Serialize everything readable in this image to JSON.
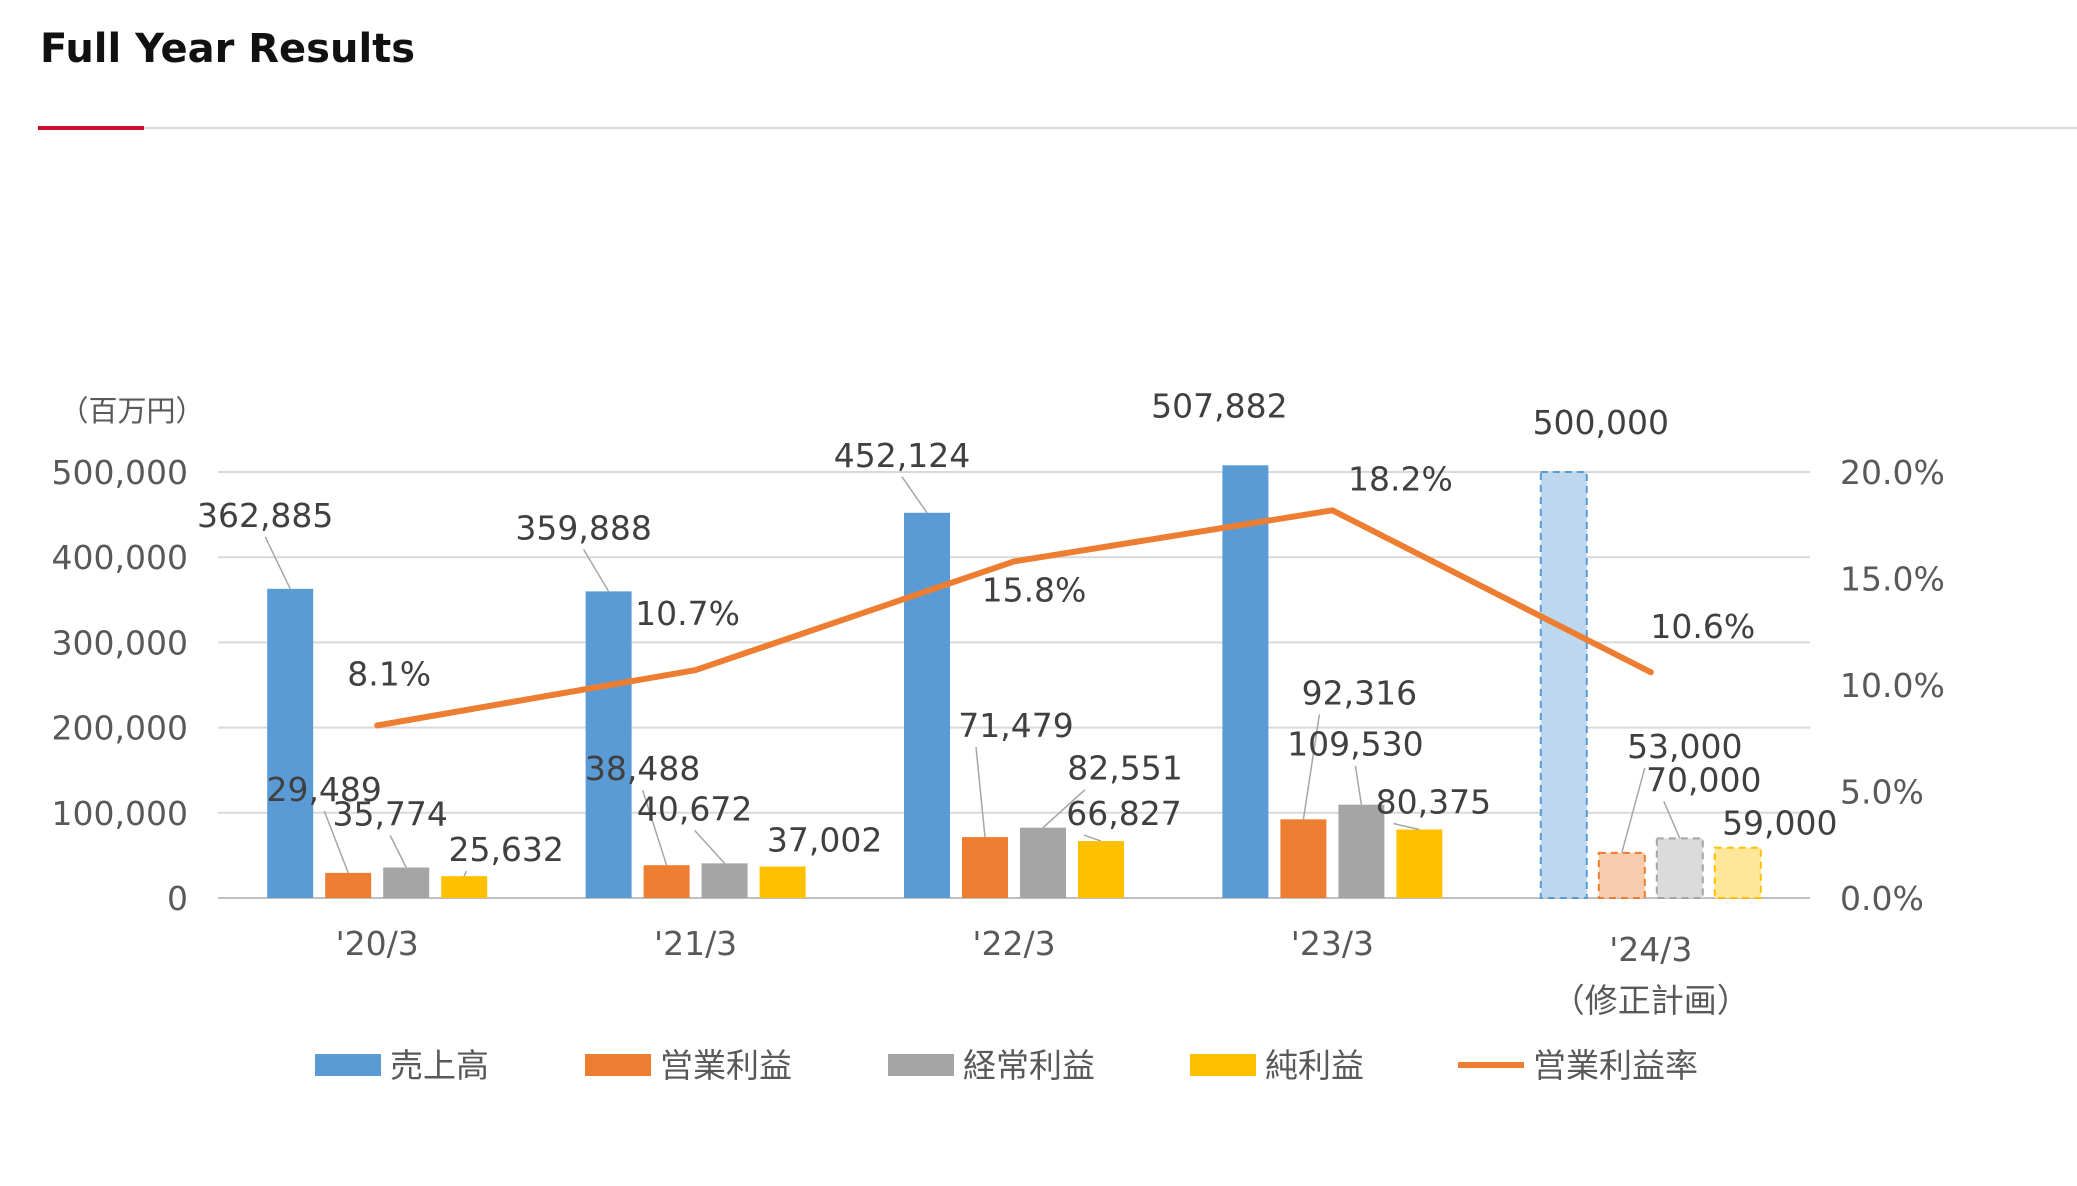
{
  "page": {
    "title": "Full Year Results"
  },
  "chart_data": {
    "type": "bar",
    "unit_label": "（百万円）",
    "categories": [
      "'20/3",
      "'21/3",
      "'22/3",
      "'23/3",
      "'24/3"
    ],
    "category_sublabels": [
      "",
      "",
      "",
      "",
      "（修正計画）"
    ],
    "forecast_index": 4,
    "y_left": {
      "min": 0,
      "max": 500000,
      "ticks": [
        0,
        100000,
        200000,
        300000,
        400000,
        500000
      ],
      "tick_labels": [
        "0",
        "100,000",
        "200,000",
        "300,000",
        "400,000",
        "500,000"
      ]
    },
    "y_right": {
      "min": 0,
      "max": 20,
      "ticks": [
        0,
        5,
        10,
        15,
        20
      ],
      "tick_labels": [
        "0.0%",
        "5.0%",
        "10.0%",
        "15.0%",
        "20.0%"
      ]
    },
    "series": [
      {
        "name": "売上高",
        "type": "bar",
        "axis": "left",
        "color": "#5b9bd5",
        "forecast_color": "#bdd7ee",
        "values": [
          362885,
          359888,
          452124,
          507882,
          500000
        ],
        "labels": [
          "362,885",
          "359,888",
          "452,124",
          "507,882",
          "500,000"
        ]
      },
      {
        "name": "営業利益",
        "type": "bar",
        "axis": "left",
        "color": "#ed7d31",
        "forecast_color": "#f8cbad",
        "values": [
          29489,
          38488,
          71479,
          92316,
          53000
        ],
        "labels": [
          "29,489",
          "38,488",
          "71,479",
          "92,316",
          "53,000"
        ]
      },
      {
        "name": "経常利益",
        "type": "bar",
        "axis": "left",
        "color": "#a5a5a5",
        "forecast_color": "#dbdbdb",
        "values": [
          35774,
          40672,
          82551,
          109530,
          70000
        ],
        "labels": [
          "35,774",
          "40,672",
          "82,551",
          "109,530",
          "70,000"
        ]
      },
      {
        "name": "純利益",
        "type": "bar",
        "axis": "left",
        "color": "#ffc000",
        "forecast_color": "#ffe699",
        "values": [
          25632,
          37002,
          66827,
          80375,
          59000
        ],
        "labels": [
          "25,632",
          "37,002",
          "66,827",
          "80,375",
          "59,000"
        ]
      },
      {
        "name": "営業利益率",
        "type": "line",
        "axis": "right",
        "color": "#ed7d31",
        "values": [
          8.1,
          10.7,
          15.8,
          18.2,
          10.6
        ],
        "labels": [
          "8.1%",
          "10.7%",
          "15.8%",
          "18.2%",
          "10.6%"
        ]
      }
    ]
  }
}
